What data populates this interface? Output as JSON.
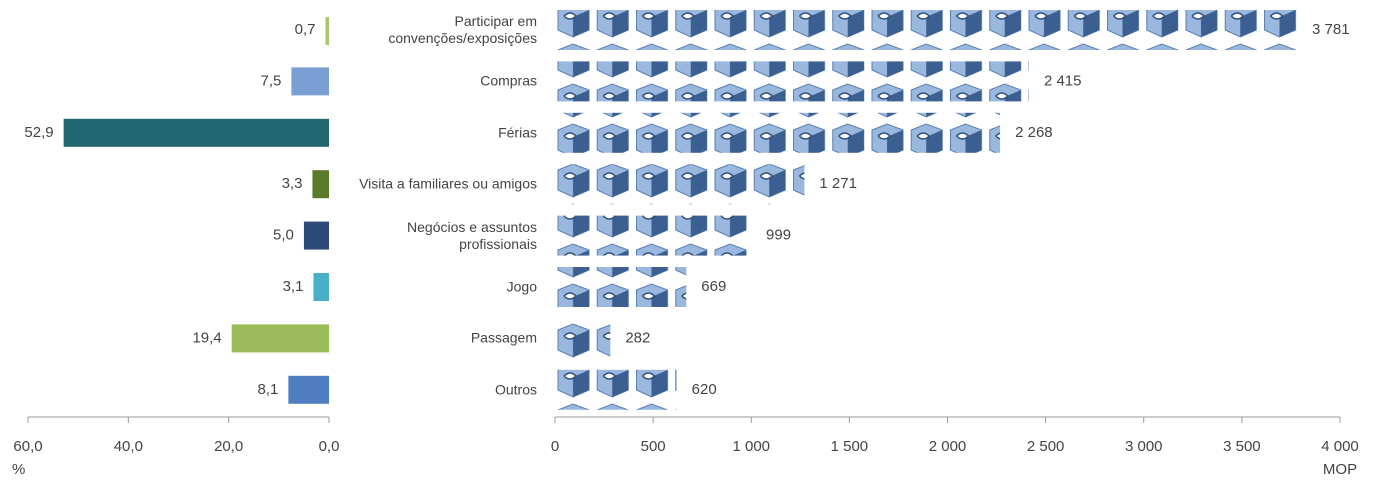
{
  "chart_data": [
    {
      "type": "bar",
      "orientation": "horizontal",
      "xlabel": "%",
      "values": [
        0.7,
        7.5,
        52.9,
        3.3,
        5.0,
        3.1,
        19.4,
        8.1
      ],
      "value_labels": [
        "0,7",
        "7,5",
        "52,9",
        "3,3",
        "5,0",
        "3,1",
        "19,4",
        "8,1"
      ],
      "colors": [
        "#a5c96a",
        "#7a9fd4",
        "#22666f",
        "#5a7a2a",
        "#2c4a7a",
        "#4ab0c8",
        "#9bbb59",
        "#4f7fc0"
      ],
      "xlim": [
        60,
        0
      ],
      "xticks": [
        {
          "value": 60,
          "label": "60,0"
        },
        {
          "value": 40,
          "label": "40,0"
        },
        {
          "value": 20,
          "label": "20,0"
        },
        {
          "value": 0,
          "label": "0,0"
        }
      ]
    },
    {
      "type": "pictograph",
      "orientation": "horizontal",
      "xlabel": "MOP",
      "categories": [
        "Participar em convenções/exposições",
        "Compras",
        "Férias",
        "Visita a familiares ou amigos",
        "Negócios e assuntos profissionais",
        "Jogo",
        "Passagem",
        "Outros"
      ],
      "values": [
        3781,
        2415,
        2268,
        1271,
        999,
        669,
        282,
        620
      ],
      "value_labels": [
        "3 781",
        "2 415",
        "2 268",
        "1 271",
        "999",
        "669",
        "282",
        "620"
      ],
      "color": "#7a9fd4",
      "xlim": [
        0,
        4000
      ],
      "xticks": [
        0,
        500,
        {
          "value": 1000,
          "label": "1 000"
        },
        {
          "value": 1500,
          "label": "1 500"
        },
        {
          "value": 2000,
          "label": "2 000"
        },
        {
          "value": 2500,
          "label": "2 500"
        },
        {
          "value": 3000,
          "label": "3 000"
        },
        {
          "value": 3500,
          "label": "3 500"
        },
        {
          "value": 4000,
          "label": "4 000"
        }
      ]
    }
  ]
}
